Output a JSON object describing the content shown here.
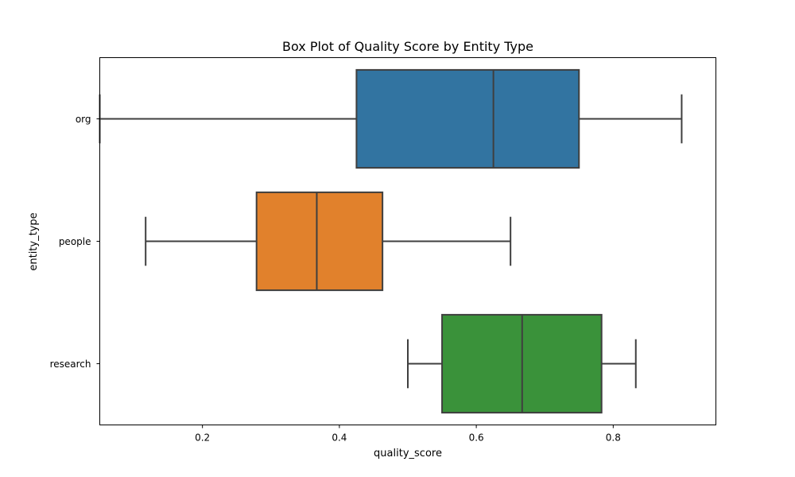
{
  "chart_data": {
    "type": "boxplot",
    "orientation": "horizontal",
    "title": "Box Plot of Quality Score by Entity Type",
    "xlabel": "quality_score",
    "ylabel": "entity_type",
    "xlim": [
      0.05,
      0.95
    ],
    "xticks": [
      {
        "value": 0.2,
        "label": "0.2"
      },
      {
        "value": 0.4,
        "label": "0.4"
      },
      {
        "value": 0.6,
        "label": "0.6"
      },
      {
        "value": 0.8,
        "label": "0.8"
      }
    ],
    "grid": false,
    "legend": "none",
    "categories": [
      "org",
      "people",
      "research"
    ],
    "boxes": [
      {
        "category": "org",
        "whisker_low": 0.05,
        "q1": 0.425,
        "median": 0.625,
        "q3": 0.75,
        "whisker_high": 0.9,
        "color": "#3274a1"
      },
      {
        "category": "people",
        "whisker_low": 0.117,
        "q1": 0.279,
        "median": 0.367,
        "q3": 0.463,
        "whisker_high": 0.65,
        "color": "#e1812c"
      },
      {
        "category": "research",
        "whisker_low": 0.5,
        "q1": 0.55,
        "median": 0.667,
        "q3": 0.783,
        "whisker_high": 0.833,
        "color": "#3a923a"
      }
    ],
    "line_color": "#3f3f3f"
  }
}
